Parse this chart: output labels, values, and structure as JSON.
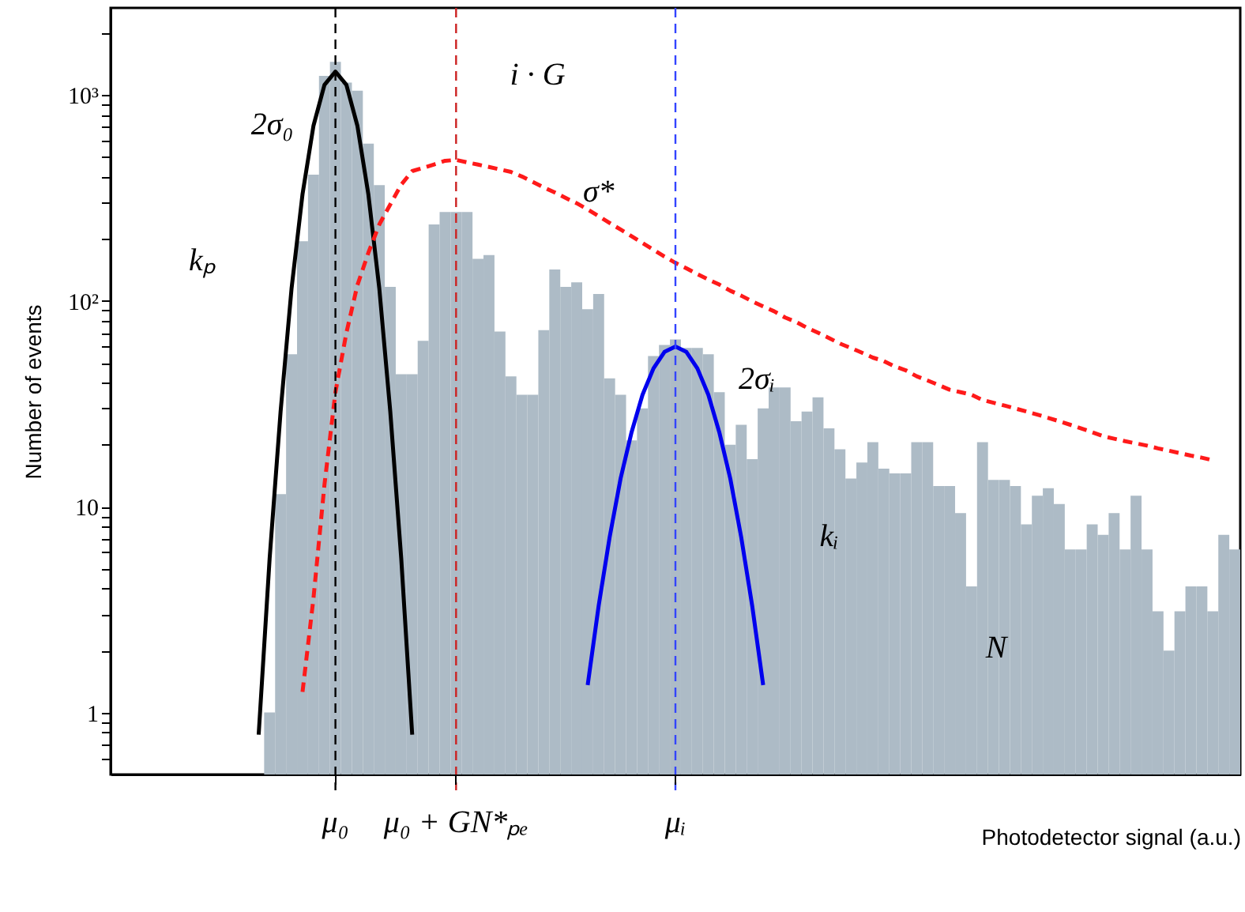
{
  "chart_data": {
    "type": "bar",
    "xlabel": "Photodetector signal (a.u.)",
    "ylabel": "Number of events",
    "categories": [
      null,
      null,
      null,
      null,
      null,
      null,
      null,
      null,
      null,
      null,
      null,
      null,
      null,
      null,
      null,
      null,
      null,
      null,
      null,
      null,
      "μ₀",
      null,
      null,
      null,
      null,
      null,
      null,
      null,
      null,
      null,
      null,
      "μ₀ + GN*ₚₑ",
      null,
      null,
      null,
      null,
      null,
      null,
      null,
      null,
      null,
      null,
      null,
      null,
      null,
      null,
      null,
      null,
      null,
      null,
      null,
      "μᵢ",
      null,
      null,
      null,
      null,
      null,
      null,
      null,
      null,
      null,
      null,
      null,
      null,
      null,
      null,
      null,
      null,
      null,
      null,
      null,
      null,
      null,
      null,
      null,
      null,
      null,
      null,
      null,
      null,
      null,
      null,
      null,
      null,
      null,
      null,
      null,
      null,
      null,
      null,
      null,
      null,
      null,
      null,
      null,
      null,
      null,
      null,
      null,
      null,
      null,
      null,
      null
    ],
    "ylim": [
      0.5,
      2650
    ],
    "log": "y",
    "grid": false,
    "yticks": [
      {
        "value": 0.6,
        "label": null
      },
      {
        "value": 0.7,
        "label": null
      },
      {
        "value": 0.8,
        "label": null
      },
      {
        "value": 0.9,
        "label": null
      },
      1,
      {
        "value": 2,
        "label": null
      },
      {
        "value": 3,
        "label": null
      },
      {
        "value": 4,
        "label": null
      },
      {
        "value": 5,
        "label": null
      },
      {
        "value": 6,
        "label": null
      },
      {
        "value": 7,
        "label": null
      },
      {
        "value": 8,
        "label": null
      },
      {
        "value": 9,
        "label": null
      },
      10,
      {
        "value": 20,
        "label": null
      },
      {
        "value": 30,
        "label": null
      },
      {
        "value": 40,
        "label": null
      },
      {
        "value": 50,
        "label": null
      },
      {
        "value": 60,
        "label": null
      },
      {
        "value": 70,
        "label": null
      },
      {
        "value": 80,
        "label": null
      },
      {
        "value": 90,
        "label": null
      },
      {
        "value": 100,
        "label": "10²"
      },
      {
        "value": 200,
        "label": null
      },
      {
        "value": 300,
        "label": null
      },
      {
        "value": 400,
        "label": null
      },
      {
        "value": 500,
        "label": null
      },
      {
        "value": 600,
        "label": null
      },
      {
        "value": 700,
        "label": null
      },
      {
        "value": 800,
        "label": null
      },
      {
        "value": 900,
        "label": null
      },
      {
        "value": 1000,
        "label": "10³"
      },
      {
        "value": 2000,
        "label": null
      }
    ],
    "series": [
      {
        "color": "#adbbc6",
        "values": [
          null,
          null,
          null,
          null,
          null,
          null,
          null,
          null,
          null,
          null,
          null,
          null,
          null,
          null,
          1,
          11.5,
          55,
          195,
          410,
          1240,
          1450,
          1150,
          1050,
          580,
          365,
          117,
          44,
          44,
          64,
          235,
          270,
          270,
          270,
          160,
          167,
          71,
          43,
          35,
          35,
          72,
          142,
          117,
          123,
          91,
          108,
          42,
          35,
          21,
          30,
          54,
          61,
          65,
          59,
          59,
          55,
          36,
          20,
          25,
          17,
          30,
          38,
          38,
          26,
          29,
          34,
          24,
          19,
          13.7,
          16.4,
          20.6,
          15.3,
          14.5,
          14.5,
          20.6,
          20.6,
          12.6,
          12.6,
          9.3,
          4.1,
          20.6,
          13.5,
          13.5,
          12.6,
          8.2,
          11.3,
          12.3,
          10.3,
          6.2,
          6.2,
          8.2,
          7.3,
          9.3,
          6.2,
          11.3,
          6.2,
          3.1,
          2.0,
          3.1,
          4.1,
          4.1,
          3.1,
          7.3,
          6.2
        ]
      },
      {
        "type": "line",
        "color": "#000000",
        "line_style": "solid",
        "values": [
          null,
          null,
          null,
          null,
          null,
          null,
          null,
          null,
          null,
          null,
          null,
          null,
          null,
          0.78,
          5.6,
          29,
          115,
          330,
          710,
          1120,
          1300,
          1120,
          710,
          330,
          115,
          29,
          5.6,
          0.78,
          null,
          null,
          null,
          null,
          null,
          null,
          null,
          null,
          null,
          null,
          null,
          null,
          null,
          null,
          null,
          null,
          null,
          null,
          null,
          null,
          null,
          null,
          null,
          null,
          null,
          null,
          null,
          null,
          null,
          null,
          null,
          null,
          null,
          null,
          null,
          null,
          null,
          null,
          null,
          null,
          null,
          null,
          null,
          null,
          null,
          null,
          null,
          null,
          null,
          null,
          null,
          null,
          null,
          null,
          null,
          null,
          null,
          null,
          null,
          null,
          null,
          null,
          null,
          null,
          null,
          null,
          null,
          null,
          null,
          null,
          null,
          null,
          null,
          null,
          null
        ]
      },
      {
        "type": "line",
        "color": "#0000ee",
        "line_style": "solid",
        "values": [
          null,
          null,
          null,
          null,
          null,
          null,
          null,
          null,
          null,
          null,
          null,
          null,
          null,
          null,
          null,
          null,
          null,
          null,
          null,
          null,
          null,
          null,
          null,
          null,
          null,
          null,
          null,
          null,
          null,
          null,
          null,
          null,
          null,
          null,
          null,
          null,
          null,
          null,
          null,
          null,
          null,
          null,
          null,
          1.36,
          3.3,
          7.1,
          13.7,
          23,
          35,
          47,
          56.5,
          60,
          56.5,
          47,
          35,
          23,
          13.7,
          7.1,
          3.3,
          1.36,
          null,
          null,
          null,
          null,
          null,
          null,
          null,
          null,
          null,
          null,
          null,
          null,
          null,
          null,
          null,
          null,
          null,
          null,
          null,
          null,
          null,
          null,
          null,
          null,
          null,
          null,
          null,
          null,
          null,
          null,
          null,
          null,
          null,
          null,
          null,
          null,
          null,
          null,
          null,
          null,
          null,
          null,
          null
        ]
      },
      {
        "type": "line",
        "color": "#ff1a1a",
        "line_style": "dashed",
        "values": [
          null,
          null,
          null,
          null,
          null,
          null,
          null,
          null,
          null,
          null,
          null,
          null,
          null,
          null,
          null,
          null,
          null,
          1.26,
          3.6,
          12.8,
          36,
          70,
          119,
          171,
          235,
          294,
          367,
          427,
          443,
          460,
          479,
          484,
          471,
          459,
          447,
          435,
          423,
          402,
          378,
          356,
          336,
          316,
          298,
          278,
          258,
          239,
          222,
          206,
          191,
          177,
          164,
          153,
          144,
          135,
          127,
          120,
          112,
          106,
          99.5,
          94,
          89,
          83,
          79,
          74,
          70,
          66,
          62,
          59,
          56,
          53,
          51,
          48,
          46,
          43,
          41,
          39,
          37,
          36,
          35,
          33,
          32,
          31,
          30,
          29,
          28,
          27,
          26,
          25,
          24,
          23,
          22,
          21.4,
          20.8,
          20.3,
          19.8,
          19.2,
          18.7,
          18.2,
          17.7,
          17.3,
          16.8,
          null,
          null
        ]
      }
    ],
    "ref_lines": [
      {
        "axis": "x",
        "value": "μ₀",
        "color": "#000000",
        "line_style": "dashed"
      },
      {
        "axis": "x",
        "value": "μᵢ",
        "color": "#3344ff",
        "line_style": "dashed"
      },
      {
        "axis": "x",
        "value": "μ₀ + GN*ₚₑ",
        "color": "#cc2222",
        "line_style": "dashed"
      }
    ],
    "annotations": [
      "i · G",
      "2σ₀",
      "σ*",
      "2σᵢ",
      "kₚ",
      "kᵢ",
      "N"
    ]
  }
}
